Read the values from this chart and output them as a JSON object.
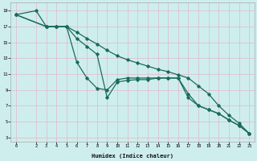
{
  "xlabel": "Humidex (Indice chaleur)",
  "bg_color": "#ceeeed",
  "grid_color": "#e0b8c8",
  "line_color": "#1a6b5a",
  "xlim": [
    -0.5,
    23.5
  ],
  "ylim": [
    2.5,
    20.0
  ],
  "xticks": [
    0,
    2,
    3,
    4,
    5,
    6,
    7,
    8,
    9,
    10,
    11,
    12,
    13,
    14,
    15,
    16,
    17,
    18,
    19,
    20,
    21,
    22,
    23
  ],
  "yticks": [
    3,
    5,
    7,
    9,
    11,
    13,
    15,
    17,
    19
  ],
  "series1_x": [
    0,
    2,
    3,
    4,
    5,
    6,
    7,
    8,
    9,
    10,
    11,
    12,
    13,
    14,
    15,
    16,
    17,
    18,
    19,
    20,
    21,
    22,
    23
  ],
  "series1_y": [
    18.5,
    19.0,
    17.0,
    17.0,
    17.0,
    16.3,
    15.5,
    14.8,
    14.0,
    13.3,
    12.8,
    12.4,
    12.0,
    11.6,
    11.3,
    10.9,
    10.5,
    9.5,
    8.5,
    7.0,
    5.8,
    4.8,
    3.5
  ],
  "series2_x": [
    0,
    3,
    4,
    5,
    6,
    7,
    8,
    9,
    10,
    11,
    12,
    13,
    14,
    15,
    16,
    17,
    18,
    19,
    20,
    21,
    22,
    23
  ],
  "series2_y": [
    18.5,
    17.0,
    17.0,
    17.0,
    12.5,
    10.5,
    9.2,
    9.0,
    10.3,
    10.5,
    10.5,
    10.5,
    10.5,
    10.5,
    10.5,
    8.0,
    7.0,
    6.5,
    6.0,
    5.2,
    4.5,
    3.5
  ],
  "series3_x": [
    0,
    3,
    4,
    5,
    6,
    7,
    8,
    9,
    10,
    11,
    12,
    13,
    14,
    15,
    16,
    17,
    18,
    19,
    20,
    21,
    22,
    23
  ],
  "series3_y": [
    18.5,
    17.0,
    17.0,
    17.0,
    15.5,
    14.5,
    13.5,
    8.0,
    10.0,
    10.2,
    10.3,
    10.3,
    10.5,
    10.5,
    10.5,
    8.5,
    7.0,
    6.5,
    6.0,
    5.2,
    4.5,
    3.5
  ]
}
